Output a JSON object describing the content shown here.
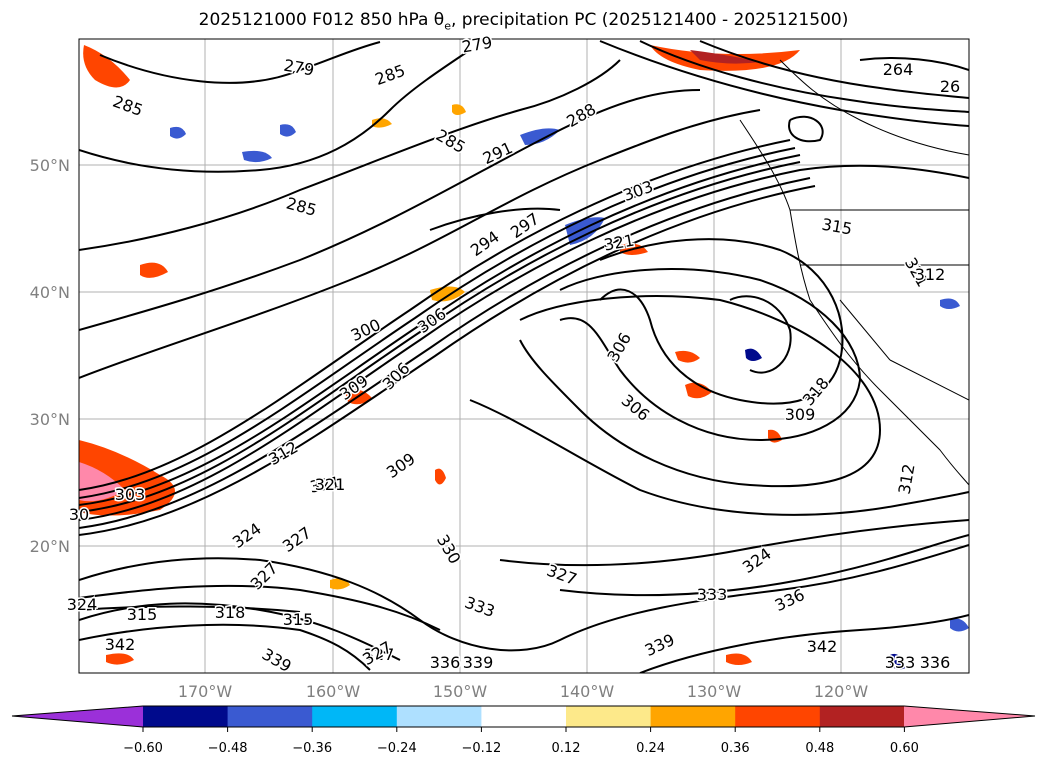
{
  "title": {
    "prefix": "2025121000 F012 850 hPa θ",
    "subscript": "e",
    "suffix": ", precipitation PC (2025121400 - 2025121500)"
  },
  "axes": {
    "lat_labels": [
      "50°N",
      "40°N",
      "30°N",
      "20°N"
    ],
    "lon_labels": [
      "170°W",
      "160°W",
      "150°W",
      "140°W",
      "130°W",
      "120°W"
    ],
    "label_color": "#808080"
  },
  "colorbar": {
    "tick_labels": [
      "−0.60",
      "−0.48",
      "−0.36",
      "−0.24",
      "−0.12",
      "0.12",
      "0.24",
      "0.36",
      "0.48",
      "0.60"
    ],
    "colors": [
      "#9b30d9",
      "#000a8c",
      "#3a5ad1",
      "#00b7f7",
      "#aee0ff",
      "#ffffff",
      "#fde98a",
      "#ffa500",
      "#ff4500",
      "#b22222",
      "#ff88aa",
      "#ff88aa"
    ],
    "under_color": "#9b30d9",
    "over_color": "#ff88aa"
  },
  "contour_labels": [
    "279",
    "285",
    "279",
    "285",
    "285",
    "288",
    "291",
    "285",
    "264",
    "26",
    "303",
    "297",
    "294",
    "321",
    "315",
    "300",
    "306",
    "309",
    "306",
    "312",
    "30",
    "306",
    "306",
    "318",
    "312",
    "321",
    "303",
    "324",
    "327",
    "321",
    "309",
    "327",
    "324",
    "336",
    "333",
    "315",
    "318",
    "327",
    "315",
    "342",
    "339",
    "330",
    "327",
    "333",
    "336",
    "339",
    "339",
    "342",
    "333",
    "336",
    "324",
    "312",
    "309",
    "327",
    "321"
  ]
}
